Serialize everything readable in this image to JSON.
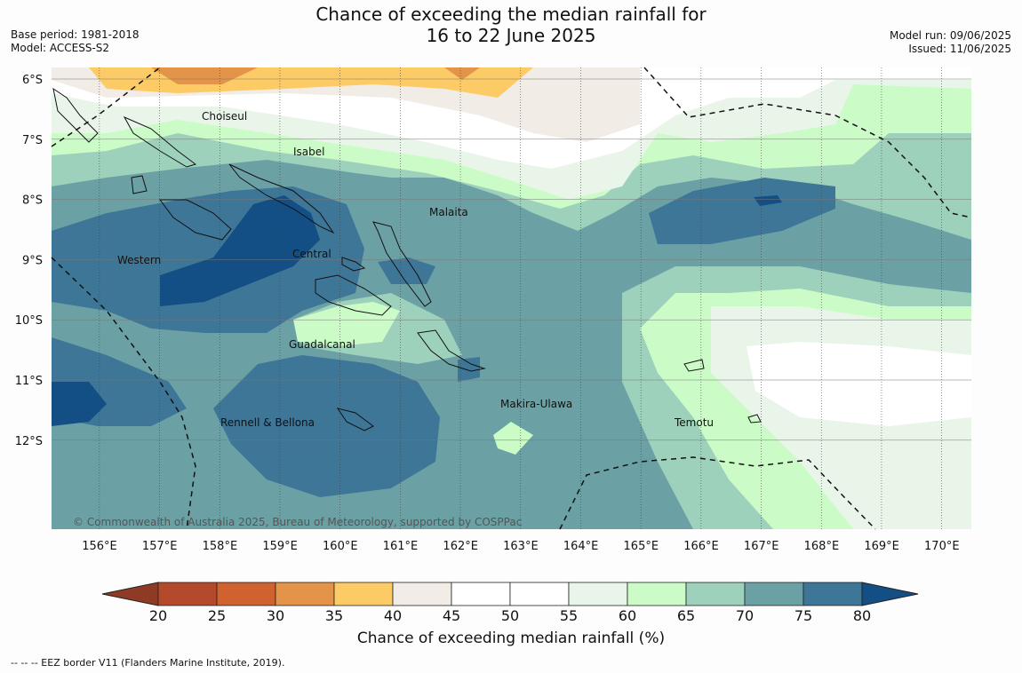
{
  "title_line1": "Chance of exceeding the median rainfall for",
  "title_line2": "16 to 22 June 2025",
  "base_period": "Base period: 1981-2018",
  "model": "Model: ACCESS-S2",
  "model_run": "Model run: 09/06/2025",
  "issued": "Issued: 11/06/2025",
  "copyright": "© Commonwealth of Australia 2025, Bureau of Meteorology, supported by COSPPac",
  "lat_ticks": [
    "6°S",
    "7°S",
    "8°S",
    "9°S",
    "10°S",
    "11°S",
    "12°S"
  ],
  "lon_ticks": [
    "156°E",
    "157°E",
    "158°E",
    "159°E",
    "160°E",
    "161°E",
    "162°E",
    "163°E",
    "164°E",
    "165°E",
    "166°E",
    "167°E",
    "168°E",
    "169°E",
    "170°E"
  ],
  "provinces": [
    "Choiseul",
    "Isabel",
    "Malaita",
    "Western",
    "Central",
    "Guadalcanal",
    "Makira-Ulawa",
    "Rennell & Bellona",
    "Temotu"
  ],
  "colorbar": {
    "ticks": [
      "20",
      "25",
      "30",
      "35",
      "40",
      "45",
      "50",
      "55",
      "60",
      "65",
      "70",
      "75",
      "80"
    ],
    "colors": [
      "#8f3a24",
      "#b5492b",
      "#d0622f",
      "#e39449",
      "#fdcb66",
      "#f1ece6",
      "#ffffff",
      "#ffffff",
      "#eaf5e9",
      "#cbfbc7",
      "#9dd1bb",
      "#6ba1a5",
      "#3e7698",
      "#134e85"
    ],
    "title": "Chance of exceeding median rainfall (%)"
  },
  "eez_note": "--  --  -- EEZ border V11 (Flanders Marine Institute, 2019)."
}
